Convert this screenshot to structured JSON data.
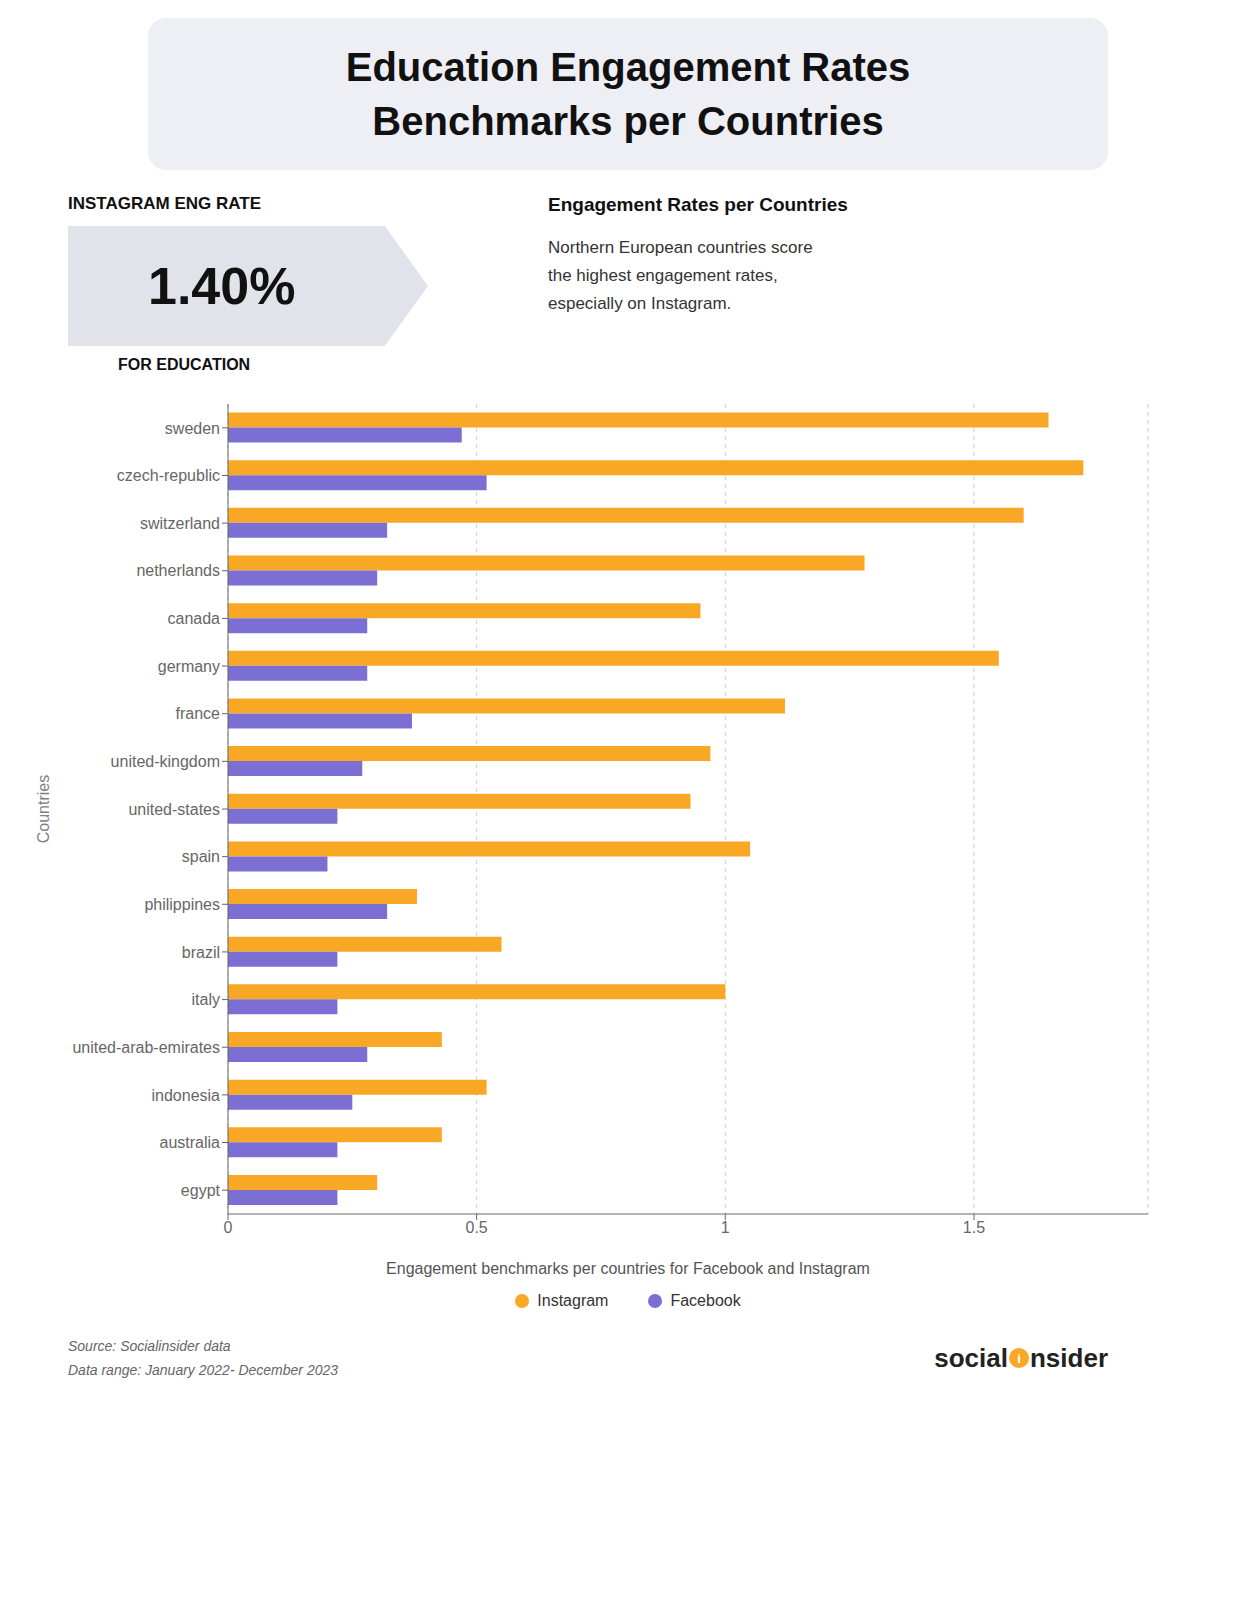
{
  "chart_data": {
    "type": "bar",
    "orientation": "horizontal",
    "title": "Education Engagement Rates\nBenchmarks per Countries",
    "subtitle": "Engagement benchmarks per countries for Facebook and Instagram",
    "annotations": [
      "INSTAGRAM ENG RATE",
      "1.40%",
      "FOR EDUCATION",
      "Engagement Rates per Countries",
      "Northern European countries score\nthe highest engagement rates,\nespecially on Instagram.",
      "Source: Socialinsider data\nData range: January 2022- December 2023",
      "social",
      "i",
      "nsider"
    ],
    "ylabel": "Countries",
    "categories": [
      "sweden",
      "czech-republic",
      "switzerland",
      "netherlands",
      "canada",
      "germany",
      "france",
      "united-kingdom",
      "united-states",
      "spain",
      "philippines",
      "brazil",
      "italy",
      "united-arab-emirates",
      "indonesia",
      "australia",
      "egypt"
    ],
    "series": [
      {
        "name": "Instagram",
        "color": "#f9a825",
        "values": [
          1.65,
          1.72,
          1.6,
          1.28,
          0.95,
          1.55,
          1.12,
          0.97,
          0.93,
          1.05,
          0.38,
          0.55,
          1.0,
          0.43,
          0.52,
          0.43,
          0.3
        ]
      },
      {
        "name": "Facebook",
        "color": "#7b6fd4",
        "values": [
          0.47,
          0.52,
          0.32,
          0.3,
          0.28,
          0.28,
          0.37,
          0.27,
          0.22,
          0.2,
          0.32,
          0.22,
          0.22,
          0.28,
          0.25,
          0.22,
          0.22
        ]
      }
    ],
    "xlim": [
      0,
      1.85
    ],
    "xticks": [
      0,
      0.5,
      1,
      1.5
    ],
    "grid": true,
    "legend": "bottom"
  }
}
